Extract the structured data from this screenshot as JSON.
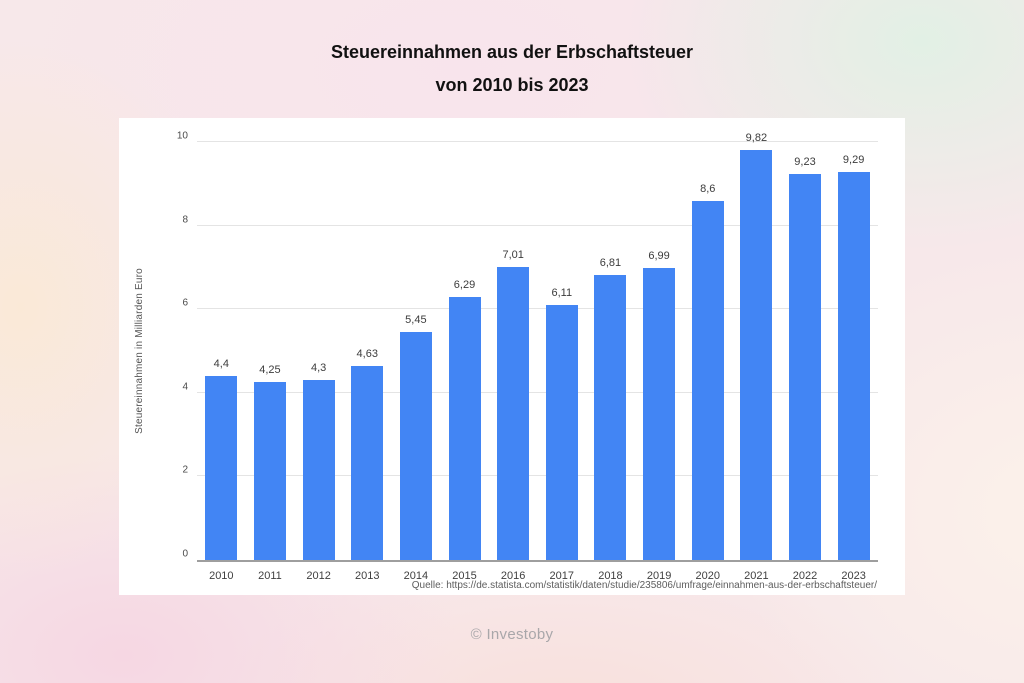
{
  "page": {
    "title_line1": "Steuereinnahmen aus der Erbschaftsteuer",
    "title_line2": "von 2010 bis 2023",
    "watermark": "© Investoby"
  },
  "chart_data": {
    "type": "bar",
    "categories": [
      "2010",
      "2011",
      "2012",
      "2013",
      "2014",
      "2015",
      "2016",
      "2017",
      "2018",
      "2019",
      "2020",
      "2021",
      "2022",
      "2023"
    ],
    "values": [
      4.4,
      4.25,
      4.3,
      4.63,
      5.45,
      6.29,
      7.01,
      6.11,
      6.81,
      6.99,
      8.6,
      9.82,
      9.23,
      9.29
    ],
    "value_labels": [
      "4,4",
      "4,25",
      "4,3",
      "4,63",
      "5,45",
      "6,29",
      "7,01",
      "6,11",
      "6,81",
      "6,99",
      "8,6",
      "9,82",
      "9,23",
      "9,29"
    ],
    "title": "Steuereinnahmen aus der Erbschaftsteuer von 2010 bis 2023",
    "xlabel": "",
    "ylabel": "Steuereinnahmen in Milliarden Euro",
    "ylim": [
      0,
      10
    ],
    "yticks": [
      0,
      2,
      4,
      6,
      8,
      10
    ],
    "grid": true,
    "legend": "none",
    "bar_color": "#4285f4",
    "source": "Quelle: https://de.statista.com/statistik/daten/studie/235806/umfrage/einnahmen-aus-der-erbschaftsteuer/"
  }
}
